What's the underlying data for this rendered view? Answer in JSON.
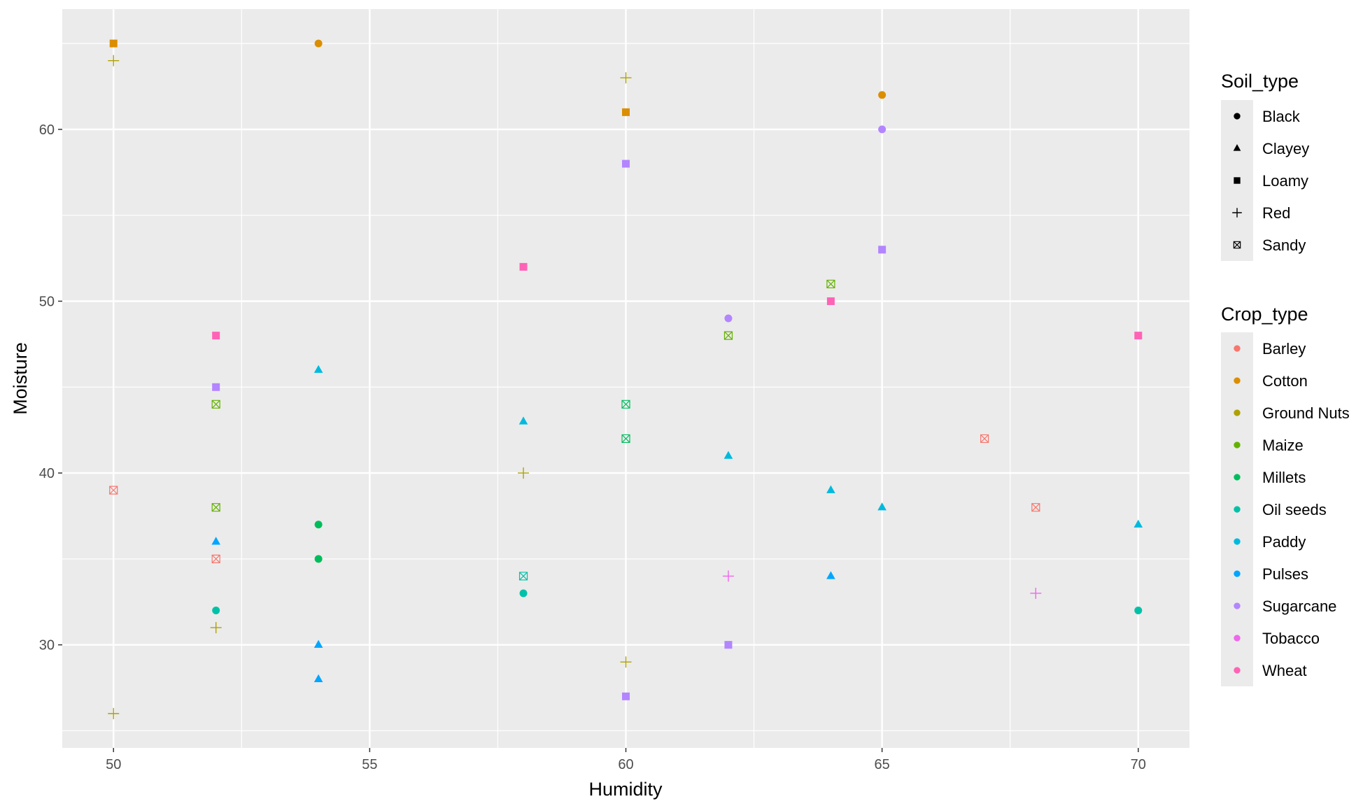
{
  "chart_data": {
    "type": "scatter",
    "title": "",
    "xlabel": "Humidity",
    "ylabel": "Moisture",
    "xlim": [
      49,
      71
    ],
    "ylim": [
      24,
      67
    ],
    "x_ticks": [
      50,
      55,
      60,
      65,
      70
    ],
    "y_ticks": [
      30,
      40,
      50,
      60
    ],
    "x_tick_labels": [
      "50",
      "55",
      "60",
      "65",
      "70"
    ],
    "y_tick_labels": [
      "30",
      "40",
      "50",
      "60"
    ],
    "grid": true,
    "legend_position": "right",
    "shape_legend": {
      "title": "Soil_type",
      "items": [
        {
          "label": "Black",
          "shape": "circle"
        },
        {
          "label": "Clayey",
          "shape": "triangle"
        },
        {
          "label": "Loamy",
          "shape": "square"
        },
        {
          "label": "Red",
          "shape": "plus"
        },
        {
          "label": "Sandy",
          "shape": "square-cross"
        }
      ]
    },
    "color_legend": {
      "title": "Crop_type",
      "items": [
        {
          "label": "Barley",
          "color": "#F8766D"
        },
        {
          "label": "Cotton",
          "color": "#DB8E00"
        },
        {
          "label": "Ground Nuts",
          "color": "#AEA200"
        },
        {
          "label": "Maize",
          "color": "#64B200"
        },
        {
          "label": "Millets",
          "color": "#00BD5C"
        },
        {
          "label": "Oil seeds",
          "color": "#00C1A7"
        },
        {
          "label": "Paddy",
          "color": "#00BADE"
        },
        {
          "label": "Pulses",
          "color": "#00A6FF"
        },
        {
          "label": "Sugarcane",
          "color": "#B385FF"
        },
        {
          "label": "Tobacco",
          "color": "#EF67EB"
        },
        {
          "label": "Wheat",
          "color": "#FF63B6"
        }
      ]
    },
    "points": [
      {
        "x": 50,
        "y": 65,
        "soil": "Loamy",
        "crop": "Cotton"
      },
      {
        "x": 50,
        "y": 64,
        "soil": "Red",
        "crop": "Ground Nuts"
      },
      {
        "x": 50,
        "y": 39,
        "soil": "Sandy",
        "crop": "Barley"
      },
      {
        "x": 50,
        "y": 26,
        "soil": "Red",
        "crop": "Ground Nuts"
      },
      {
        "x": 52,
        "y": 48,
        "soil": "Loamy",
        "crop": "Wheat"
      },
      {
        "x": 52,
        "y": 45,
        "soil": "Loamy",
        "crop": "Sugarcane"
      },
      {
        "x": 52,
        "y": 44,
        "soil": "Sandy",
        "crop": "Maize"
      },
      {
        "x": 52,
        "y": 38,
        "soil": "Sandy",
        "crop": "Maize"
      },
      {
        "x": 52,
        "y": 36,
        "soil": "Clayey",
        "crop": "Pulses"
      },
      {
        "x": 52,
        "y": 35,
        "soil": "Sandy",
        "crop": "Barley"
      },
      {
        "x": 52,
        "y": 32,
        "soil": "Black",
        "crop": "Oil seeds"
      },
      {
        "x": 52,
        "y": 31,
        "soil": "Red",
        "crop": "Ground Nuts"
      },
      {
        "x": 54,
        "y": 65,
        "soil": "Black",
        "crop": "Cotton"
      },
      {
        "x": 54,
        "y": 46,
        "soil": "Clayey",
        "crop": "Paddy"
      },
      {
        "x": 54,
        "y": 37,
        "soil": "Black",
        "crop": "Millets"
      },
      {
        "x": 54,
        "y": 35,
        "soil": "Black",
        "crop": "Millets"
      },
      {
        "x": 54,
        "y": 30,
        "soil": "Clayey",
        "crop": "Pulses"
      },
      {
        "x": 54,
        "y": 28,
        "soil": "Clayey",
        "crop": "Pulses"
      },
      {
        "x": 58,
        "y": 52,
        "soil": "Loamy",
        "crop": "Wheat"
      },
      {
        "x": 58,
        "y": 43,
        "soil": "Clayey",
        "crop": "Paddy"
      },
      {
        "x": 58,
        "y": 40,
        "soil": "Red",
        "crop": "Ground Nuts"
      },
      {
        "x": 58,
        "y": 34,
        "soil": "Sandy",
        "crop": "Oil seeds"
      },
      {
        "x": 58,
        "y": 33,
        "soil": "Black",
        "crop": "Oil seeds"
      },
      {
        "x": 60,
        "y": 63,
        "soil": "Red",
        "crop": "Ground Nuts"
      },
      {
        "x": 60,
        "y": 61,
        "soil": "Loamy",
        "crop": "Cotton"
      },
      {
        "x": 60,
        "y": 58,
        "soil": "Loamy",
        "crop": "Sugarcane"
      },
      {
        "x": 60,
        "y": 44,
        "soil": "Sandy",
        "crop": "Millets"
      },
      {
        "x": 60,
        "y": 42,
        "soil": "Sandy",
        "crop": "Millets"
      },
      {
        "x": 60,
        "y": 29,
        "soil": "Red",
        "crop": "Ground Nuts"
      },
      {
        "x": 60,
        "y": 27,
        "soil": "Loamy",
        "crop": "Sugarcane"
      },
      {
        "x": 62,
        "y": 49,
        "soil": "Black",
        "crop": "Sugarcane"
      },
      {
        "x": 62,
        "y": 48,
        "soil": "Sandy",
        "crop": "Maize"
      },
      {
        "x": 62,
        "y": 41,
        "soil": "Clayey",
        "crop": "Paddy"
      },
      {
        "x": 62,
        "y": 34,
        "soil": "Red",
        "crop": "Tobacco"
      },
      {
        "x": 62,
        "y": 30,
        "soil": "Loamy",
        "crop": "Sugarcane"
      },
      {
        "x": 64,
        "y": 51,
        "soil": "Sandy",
        "crop": "Maize"
      },
      {
        "x": 64,
        "y": 50,
        "soil": "Loamy",
        "crop": "Wheat"
      },
      {
        "x": 64,
        "y": 39,
        "soil": "Clayey",
        "crop": "Paddy"
      },
      {
        "x": 64,
        "y": 34,
        "soil": "Clayey",
        "crop": "Pulses"
      },
      {
        "x": 65,
        "y": 62,
        "soil": "Black",
        "crop": "Cotton"
      },
      {
        "x": 65,
        "y": 60,
        "soil": "Black",
        "crop": "Sugarcane"
      },
      {
        "x": 65,
        "y": 53,
        "soil": "Loamy",
        "crop": "Sugarcane"
      },
      {
        "x": 65,
        "y": 38,
        "soil": "Clayey",
        "crop": "Paddy"
      },
      {
        "x": 67,
        "y": 42,
        "soil": "Sandy",
        "crop": "Barley"
      },
      {
        "x": 68,
        "y": 38,
        "soil": "Sandy",
        "crop": "Barley"
      },
      {
        "x": 68,
        "y": 33,
        "soil": "Red",
        "crop": "Tobacco"
      },
      {
        "x": 70,
        "y": 48,
        "soil": "Loamy",
        "crop": "Wheat"
      },
      {
        "x": 70,
        "y": 37,
        "soil": "Clayey",
        "crop": "Paddy"
      },
      {
        "x": 70,
        "y": 32,
        "soil": "Black",
        "crop": "Oil seeds"
      }
    ]
  }
}
